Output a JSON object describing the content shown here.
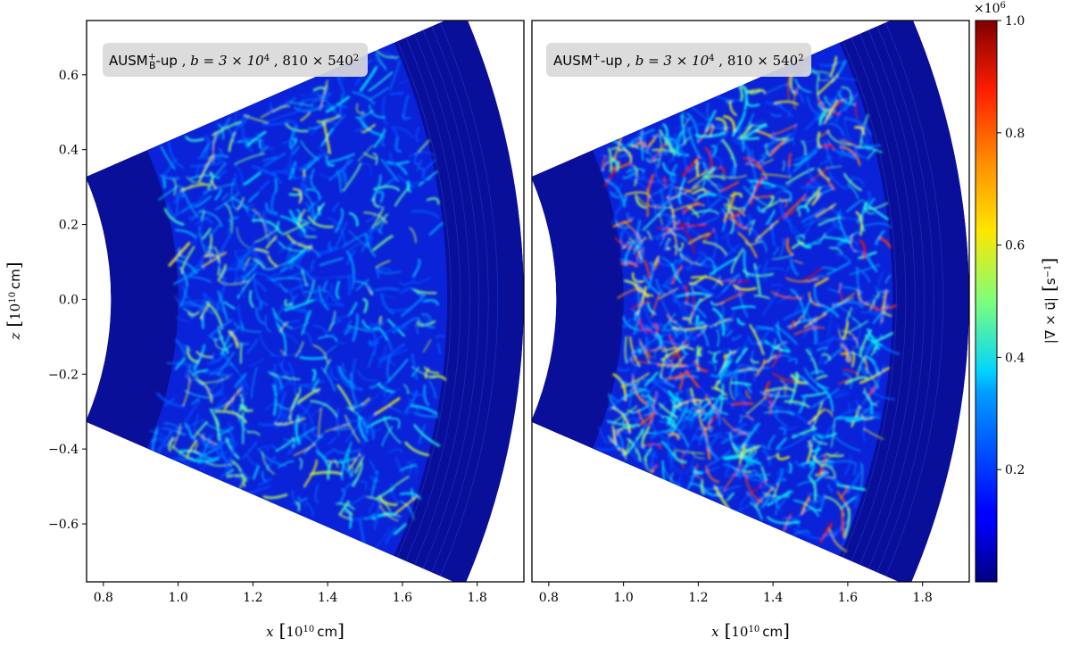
{
  "chart_data": [
    {
      "type": "heatmap",
      "annotation": {
        "scheme": "AUSM",
        "scheme_sup": "+",
        "scheme_sub": "B",
        "suffix": "-up",
        "b_text": "b = 3 × 10",
        "b_exp": "4",
        "grid_text": "810 × 540",
        "grid_exp": "2"
      },
      "xlabel": "x",
      "xunit": "10",
      "xunit_exp": "10",
      "xunit_tail": "cm",
      "ylabel": "z",
      "yunit": "10",
      "yunit_exp": "10",
      "yunit_tail": "cm",
      "xlim": [
        0.755,
        1.925
      ],
      "ylim": [
        -0.755,
        0.745
      ],
      "xticks": [
        "0.8",
        "1.0",
        "1.2",
        "1.4",
        "1.6",
        "1.8"
      ],
      "yticks": [
        "0.6",
        "0.4",
        "0.2",
        "0.0",
        "−0.2",
        "−0.4",
        "−0.6"
      ],
      "wedge": {
        "r_inner": 0.82,
        "r_outer": 1.925,
        "half_angle_deg": 23.5
      },
      "turbulence_intensity": 0.25
    },
    {
      "type": "heatmap",
      "annotation": {
        "scheme": "AUSM",
        "scheme_sup": "+",
        "scheme_sub": "",
        "suffix": "-up",
        "b_text": "b = 3 × 10",
        "b_exp": "4",
        "grid_text": "810 × 540",
        "grid_exp": "2"
      },
      "xlabel": "x",
      "xunit": "10",
      "xunit_exp": "10",
      "xunit_tail": "cm",
      "xlim": [
        0.755,
        1.925
      ],
      "ylim": [
        -0.755,
        0.745
      ],
      "xticks": [
        "0.8",
        "1.0",
        "1.2",
        "1.4",
        "1.6",
        "1.8"
      ],
      "wedge": {
        "r_inner": 0.82,
        "r_outer": 1.925,
        "half_angle_deg": 23.5
      },
      "turbulence_intensity": 0.55
    }
  ],
  "colorbar": {
    "colormap": "jet",
    "range": [
      0.0,
      1.0
    ],
    "ticks": [
      "1.0",
      "0.8",
      "0.6",
      "0.4",
      "0.2"
    ],
    "multiplier": "×10",
    "multiplier_exp": "6",
    "label": "|∇ × u⃗|",
    "unit": "s",
    "unit_exp": "−1"
  }
}
